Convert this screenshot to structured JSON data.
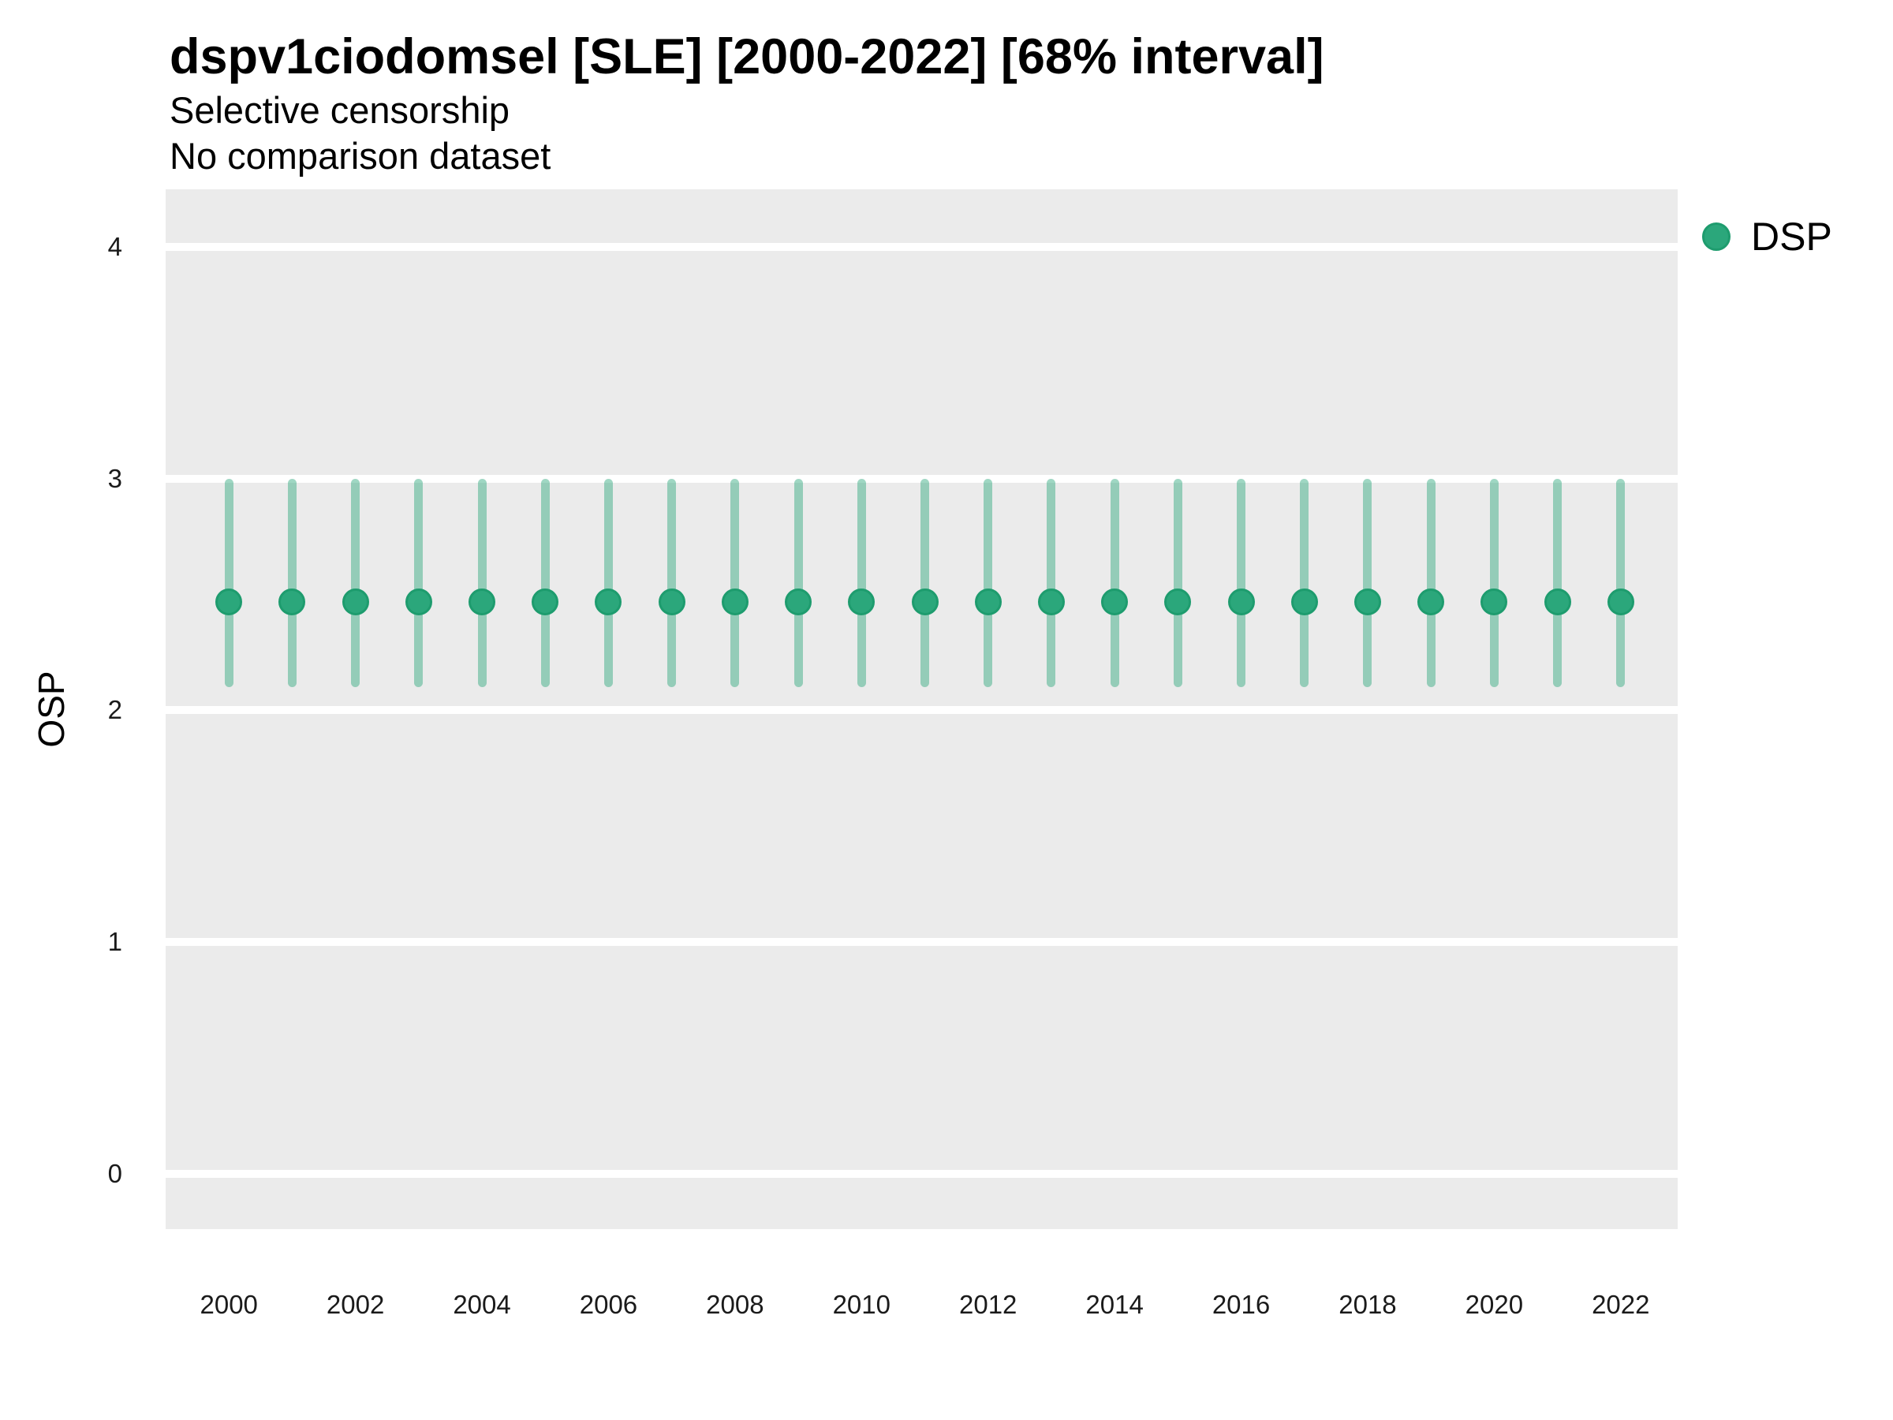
{
  "chart_data": {
    "type": "scatter",
    "subtype": "pointrange",
    "title": "dspv1ciodomsel [SLE] [2000-2022] [68% interval]",
    "subtitle_line1": "Selective censorship",
    "subtitle_line2": "No comparison dataset",
    "xlabel": "",
    "ylabel": "OSP",
    "y_ticks": [
      0,
      1,
      2,
      3,
      4
    ],
    "x_tick_years": [
      2000,
      2002,
      2004,
      2006,
      2008,
      2010,
      2012,
      2014,
      2016,
      2018,
      2020,
      2022
    ],
    "x_tick_labels": [
      "2000",
      "2002",
      "2004",
      "2006",
      "2008",
      "2010",
      "2012",
      "2014",
      "2016",
      "2018",
      "2020",
      "2022"
    ],
    "xlim": [
      1999.0,
      2022.9
    ],
    "ylim": [
      -0.24,
      4.25
    ],
    "grid": "horizontal-major-only",
    "legend_position": "right",
    "colors": {
      "panel_bg": "#EBEBEB",
      "grid": "#FFFFFF",
      "text": "#000000",
      "tick_text": "#1a1a1a"
    },
    "series": [
      {
        "name": "DSP",
        "color": "#2BA77B",
        "stroke_color": "#1E9C6E",
        "interval_alpha": 0.45,
        "years": [
          2000,
          2001,
          2002,
          2003,
          2004,
          2005,
          2006,
          2007,
          2008,
          2009,
          2010,
          2011,
          2012,
          2013,
          2014,
          2015,
          2016,
          2017,
          2018,
          2019,
          2020,
          2021,
          2022
        ],
        "center": [
          2.47,
          2.47,
          2.47,
          2.47,
          2.47,
          2.47,
          2.47,
          2.47,
          2.47,
          2.47,
          2.47,
          2.47,
          2.47,
          2.47,
          2.47,
          2.47,
          2.47,
          2.47,
          2.47,
          2.47,
          2.47,
          2.47,
          2.47
        ],
        "low": [
          2.1,
          2.1,
          2.1,
          2.1,
          2.1,
          2.1,
          2.1,
          2.1,
          2.1,
          2.1,
          2.1,
          2.1,
          2.1,
          2.1,
          2.1,
          2.1,
          2.1,
          2.1,
          2.1,
          2.1,
          2.1,
          2.1,
          2.1
        ],
        "high": [
          3.0,
          3.0,
          3.0,
          3.0,
          3.0,
          3.0,
          3.0,
          3.0,
          3.0,
          3.0,
          3.0,
          3.0,
          3.0,
          3.0,
          3.0,
          3.0,
          3.0,
          3.0,
          3.0,
          3.0,
          3.0,
          3.0,
          3.0
        ]
      }
    ]
  }
}
